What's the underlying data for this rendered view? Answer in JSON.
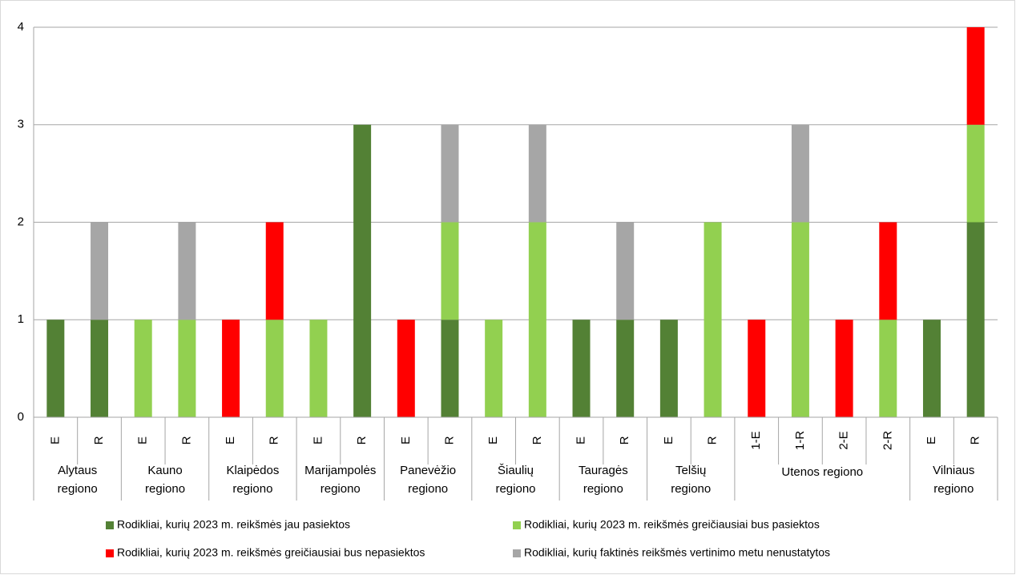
{
  "chart_data": {
    "type": "bar",
    "stacked": true,
    "groups": [
      {
        "name": "Alytaus regiono",
        "categories": [
          "E",
          "R"
        ]
      },
      {
        "name": "Kauno regiono",
        "categories": [
          "E",
          "R"
        ]
      },
      {
        "name": "Klaipėdos regiono",
        "categories": [
          "E",
          "R"
        ]
      },
      {
        "name": "Marijampolės regiono",
        "categories": [
          "E",
          "R"
        ]
      },
      {
        "name": "Panevėžio regiono",
        "categories": [
          "E",
          "R"
        ]
      },
      {
        "name": "Šiaulių regiono",
        "categories": [
          "E",
          "R"
        ]
      },
      {
        "name": "Tauragės regiono",
        "categories": [
          "E",
          "R"
        ]
      },
      {
        "name": "Telšių regiono",
        "categories": [
          "E",
          "R"
        ]
      },
      {
        "name": "Utenos regiono",
        "categories": [
          "1-E",
          "1-R",
          "2-E",
          "2-R"
        ]
      },
      {
        "name": "Vilniaus regiono",
        "categories": [
          "E",
          "R"
        ]
      }
    ],
    "series": [
      {
        "name": "Rodikliai, kurių 2023 m. reikšmės jau pasiektos",
        "color": "#538135",
        "values": [
          1,
          1,
          0,
          0,
          0,
          0,
          0,
          3,
          0,
          1,
          0,
          0,
          1,
          1,
          1,
          0,
          0,
          0,
          0,
          0,
          1,
          2
        ]
      },
      {
        "name": "Rodikliai, kurių 2023 m. reikšmės greičiausiai bus pasiektos",
        "color": "#92d050",
        "values": [
          0,
          0,
          1,
          1,
          0,
          1,
          1,
          0,
          0,
          1,
          1,
          2,
          0,
          0,
          0,
          2,
          0,
          2,
          0,
          1,
          0,
          1
        ]
      },
      {
        "name": "Rodikliai, kurių 2023 m. reikšmės greičiausiai bus nepasiektos",
        "color": "#ff0000",
        "values": [
          0,
          0,
          0,
          0,
          1,
          1,
          0,
          0,
          1,
          0,
          0,
          0,
          0,
          0,
          0,
          0,
          1,
          0,
          1,
          1,
          0,
          1
        ]
      },
      {
        "name": "Rodikliai, kurių faktinės reikšmės vertinimo metu nenustatytos",
        "color": "#a6a6a6",
        "values": [
          0,
          1,
          0,
          1,
          0,
          0,
          0,
          0,
          0,
          1,
          0,
          1,
          0,
          1,
          0,
          0,
          0,
          1,
          0,
          0,
          0,
          0
        ]
      }
    ],
    "ylim": [
      0,
      4
    ],
    "yticks": [
      0,
      1,
      2,
      3,
      4
    ],
    "grid": true,
    "legend": "bottom"
  }
}
